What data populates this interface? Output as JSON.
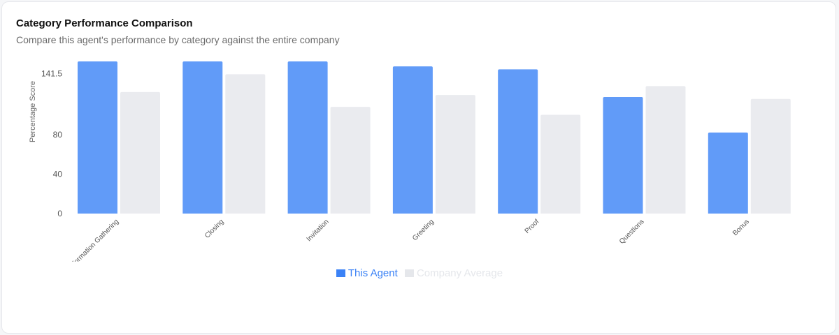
{
  "header": {
    "title": "Category Performance Comparison",
    "subtitle": "Compare this agent's performance by category against the entire company"
  },
  "colors": {
    "agent": "#619bf8",
    "company": "#eaebef",
    "legend_agent_text": "#3b82f6",
    "legend_company_text": "#e5e7eb",
    "axis_text": "#555555"
  },
  "chart_data": {
    "type": "bar",
    "title": "",
    "xlabel": "",
    "ylabel": "Percentage Score",
    "y_ticks": [
      0,
      40,
      80,
      141.5
    ],
    "ylim": [
      0,
      154
    ],
    "categories": [
      "Information Gathering",
      "Closing",
      "Invitation",
      "Greeting",
      "Proof",
      "Questions",
      "Bonus"
    ],
    "series": [
      {
        "name": "This Agent",
        "values": [
          154,
          154,
          154,
          149,
          146,
          118,
          82
        ]
      },
      {
        "name": "Company Average",
        "values": [
          123,
          141,
          108,
          120,
          100,
          129,
          116
        ]
      }
    ],
    "legend_position": "bottom-center"
  }
}
